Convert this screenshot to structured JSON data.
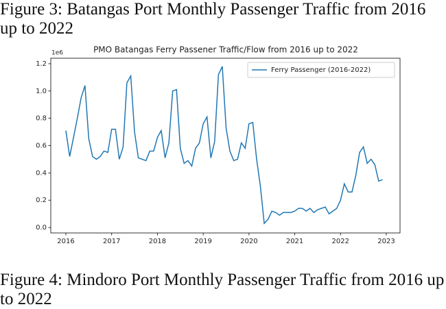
{
  "captions": {
    "figure3": "Figure 3: Batangas Port Monthly Passenger Traffic from 2016 up to 2022",
    "figure4": "Figure 4: Mindoro Port Monthly Passenger Traffic from 2016 up to 2022"
  },
  "chart_data": {
    "type": "line",
    "title": "PMO Batangas Ferry Passener Traffic/Flow from 2016 up to 2022",
    "y_multiplier": "1e6",
    "x": [
      2016.0,
      2016.083,
      2016.167,
      2016.25,
      2016.333,
      2016.417,
      2016.5,
      2016.583,
      2016.667,
      2016.75,
      2016.833,
      2016.917,
      2017.0,
      2017.083,
      2017.167,
      2017.25,
      2017.333,
      2017.417,
      2017.5,
      2017.583,
      2017.667,
      2017.75,
      2017.833,
      2017.917,
      2018.0,
      2018.083,
      2018.167,
      2018.25,
      2018.333,
      2018.417,
      2018.5,
      2018.583,
      2018.667,
      2018.75,
      2018.833,
      2018.917,
      2019.0,
      2019.083,
      2019.167,
      2019.25,
      2019.333,
      2019.417,
      2019.5,
      2019.583,
      2019.667,
      2019.75,
      2019.833,
      2019.917,
      2020.0,
      2020.083,
      2020.167,
      2020.25,
      2020.333,
      2020.417,
      2020.5,
      2020.583,
      2020.667,
      2020.75,
      2020.833,
      2020.917,
      2021.0,
      2021.083,
      2021.167,
      2021.25,
      2021.333,
      2021.417,
      2021.5,
      2021.583,
      2021.667,
      2021.75,
      2021.833,
      2021.917,
      2022.0,
      2022.083,
      2022.167,
      2022.25,
      2022.333,
      2022.417,
      2022.5,
      2022.583,
      2022.667,
      2022.75,
      2022.833,
      2022.917
    ],
    "series": [
      {
        "name": "Ferry Passenger (2016-2022)",
        "color": "#1f77b4",
        "values": [
          0.71,
          0.52,
          0.66,
          0.8,
          0.95,
          1.04,
          0.65,
          0.52,
          0.5,
          0.52,
          0.56,
          0.55,
          0.72,
          0.72,
          0.5,
          0.59,
          1.06,
          1.11,
          0.7,
          0.51,
          0.5,
          0.49,
          0.56,
          0.56,
          0.66,
          0.71,
          0.51,
          0.62,
          1.0,
          1.01,
          0.58,
          0.47,
          0.49,
          0.45,
          0.58,
          0.62,
          0.76,
          0.81,
          0.51,
          0.63,
          1.12,
          1.18,
          0.73,
          0.56,
          0.49,
          0.5,
          0.62,
          0.58,
          0.76,
          0.77,
          0.5,
          0.3,
          0.03,
          0.06,
          0.12,
          0.11,
          0.09,
          0.11,
          0.11,
          0.11,
          0.12,
          0.14,
          0.14,
          0.12,
          0.14,
          0.11,
          0.13,
          0.14,
          0.15,
          0.1,
          0.12,
          0.14,
          0.2,
          0.32,
          0.26,
          0.26,
          0.38,
          0.55,
          0.59,
          0.47,
          0.5,
          0.46,
          0.34,
          0.35
        ]
      }
    ],
    "xlim": [
      2015.67,
      2023.3
    ],
    "ylim": [
      -0.04,
      1.24
    ],
    "xticks": [
      2016,
      2017,
      2018,
      2019,
      2020,
      2021,
      2022,
      2023
    ],
    "yticks": [
      {
        "value": 0,
        "label": "0.0"
      },
      {
        "value": 0.2,
        "label": "0.2"
      },
      {
        "value": 0.4,
        "label": "0.4"
      },
      {
        "value": 0.6,
        "label": "0.6"
      },
      {
        "value": 0.8,
        "label": "0.8"
      },
      {
        "value": 1,
        "label": "1.0"
      },
      {
        "value": 1.2,
        "label": "1.2"
      }
    ],
    "grid": false,
    "legend": "upper right"
  }
}
